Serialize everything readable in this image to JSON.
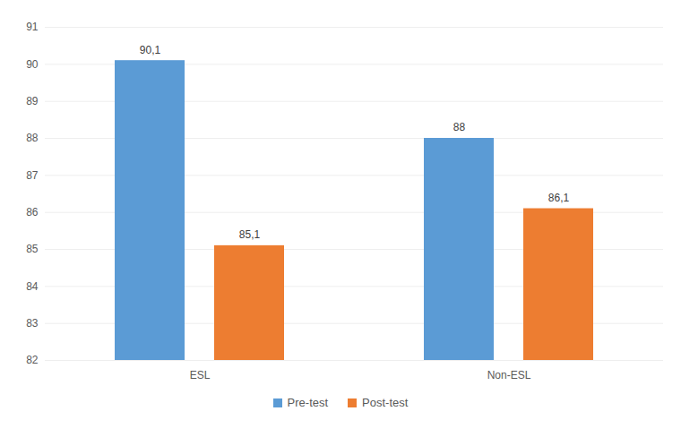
{
  "chart_data": {
    "type": "bar",
    "categories": [
      "ESL",
      "Non-ESL"
    ],
    "series": [
      {
        "name": "Pre-test",
        "color": "#5b9bd5",
        "values": [
          90.1,
          88
        ],
        "value_labels": [
          "90,1",
          "88"
        ]
      },
      {
        "name": "Post-test",
        "color": "#ed7d31",
        "values": [
          85.1,
          86.1
        ],
        "value_labels": [
          "85,1",
          "86,1"
        ]
      }
    ],
    "ylim": [
      82,
      91
    ],
    "yticks": [
      82,
      83,
      84,
      85,
      86,
      87,
      88,
      89,
      90,
      91
    ],
    "grid": true,
    "data_labels": true,
    "legend": "bottom"
  }
}
